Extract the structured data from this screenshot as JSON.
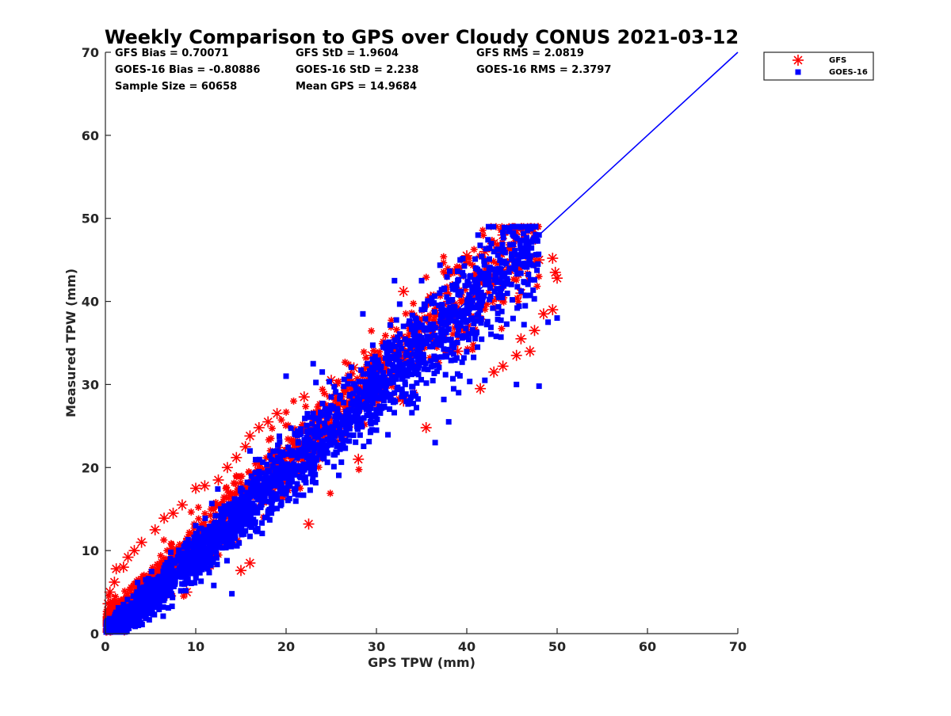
{
  "chart_data": {
    "type": "scatter",
    "title": "Weekly Comparison to GPS over Cloudy CONUS 2021-03-12",
    "xlabel": "GPS TPW (mm)",
    "ylabel": "Measured TPW (mm)",
    "xlim": [
      0,
      70
    ],
    "ylim": [
      0,
      70
    ],
    "xticks": [
      0,
      10,
      20,
      30,
      40,
      50,
      60,
      70
    ],
    "yticks": [
      0,
      10,
      20,
      30,
      40,
      50,
      60,
      70
    ],
    "grid": false,
    "legend_position": "top-right (outside axes)",
    "stats": [
      [
        "GFS Bias = 0.70071",
        "GFS StD = 1.9604",
        "GFS RMS = 2.0819"
      ],
      [
        "GOES-16 Bias = -0.80886",
        "GOES-16 StD = 2.238",
        "GOES-16 RMS = 2.3797"
      ],
      [
        "Sample Size = 60658",
        "Mean GPS = 14.9684",
        ""
      ]
    ],
    "reference_line": {
      "x": [
        0,
        70
      ],
      "y": [
        0,
        70
      ],
      "color": "#0000ff"
    },
    "series": [
      {
        "name": "GFS",
        "marker": "asterisk",
        "color": "#ff0000",
        "points": [
          [
            0.3,
            3.6
          ],
          [
            0.5,
            5.0
          ],
          [
            1.0,
            6.2
          ],
          [
            1.2,
            7.8
          ],
          [
            2.0,
            8.0
          ],
          [
            2.5,
            9.2
          ],
          [
            3.2,
            10.0
          ],
          [
            4.0,
            11.0
          ],
          [
            5.5,
            12.5
          ],
          [
            6.5,
            13.9
          ],
          [
            7.5,
            14.5
          ],
          [
            8.5,
            15.5
          ],
          [
            10.0,
            17.5
          ],
          [
            11.0,
            17.8
          ],
          [
            12.5,
            18.5
          ],
          [
            13.5,
            20.0
          ],
          [
            14.5,
            21.2
          ],
          [
            15.5,
            22.5
          ],
          [
            16.0,
            23.8
          ],
          [
            17.0,
            24.8
          ],
          [
            18.0,
            25.5
          ],
          [
            19.0,
            26.5
          ],
          [
            22.0,
            28.5
          ],
          [
            25.0,
            30.5
          ],
          [
            27.5,
            32.0
          ],
          [
            29.5,
            33.5
          ],
          [
            32.0,
            34.5
          ],
          [
            33.0,
            41.2
          ],
          [
            36.0,
            40.5
          ],
          [
            40.0,
            45.5
          ],
          [
            42.0,
            46.0
          ],
          [
            43.0,
            47.0
          ],
          [
            44.0,
            48.0
          ],
          [
            45.5,
            48.5
          ],
          [
            48.0,
            45.0
          ],
          [
            49.5,
            45.2
          ],
          [
            49.8,
            43.5
          ],
          [
            50.0,
            42.8
          ],
          [
            49.5,
            39.0
          ],
          [
            48.5,
            38.5
          ],
          [
            47.5,
            36.5
          ],
          [
            46.0,
            35.5
          ],
          [
            47.0,
            34.0
          ],
          [
            45.5,
            33.5
          ],
          [
            44.0,
            32.2
          ],
          [
            43.0,
            31.5
          ],
          [
            41.5,
            29.5
          ],
          [
            35.5,
            24.8
          ],
          [
            28.0,
            21.0
          ],
          [
            22.5,
            13.2
          ],
          [
            16.0,
            8.5
          ],
          [
            15.0,
            7.6
          ],
          [
            13.0,
            12.5
          ],
          [
            9.0,
            5.0
          ],
          [
            4.0,
            2.0
          ],
          [
            1.5,
            1.0
          ],
          [
            20.0,
            22.0
          ],
          [
            24.0,
            25.0
          ],
          [
            30.0,
            31.0
          ],
          [
            35.0,
            36.5
          ],
          [
            38.0,
            40.0
          ],
          [
            12.0,
            13.5
          ],
          [
            8.0,
            9.0
          ],
          [
            6.0,
            7.0
          ],
          [
            18.0,
            20.0
          ],
          [
            26.0,
            27.5
          ],
          [
            31.0,
            30.0
          ],
          [
            37.0,
            38.5
          ],
          [
            41.0,
            42.0
          ],
          [
            46.0,
            41.0
          ],
          [
            39.0,
            34.0
          ],
          [
            33.0,
            28.0
          ]
        ]
      },
      {
        "name": "GOES-16",
        "marker": "square",
        "color": "#0000ff",
        "points": [
          [
            1.0,
            2.0
          ],
          [
            2.0,
            3.5
          ],
          [
            3.5,
            5.0
          ],
          [
            5.0,
            6.5
          ],
          [
            7.0,
            8.5
          ],
          [
            9.0,
            10.5
          ],
          [
            11.0,
            12.5
          ],
          [
            13.0,
            15.0
          ],
          [
            15.0,
            17.5
          ],
          [
            17.0,
            19.5
          ],
          [
            19.0,
            22.0
          ],
          [
            21.0,
            24.0
          ],
          [
            23.0,
            26.5
          ],
          [
            25.0,
            28.5
          ],
          [
            27.0,
            31.0
          ],
          [
            29.0,
            32.5
          ],
          [
            31.0,
            35.0
          ],
          [
            33.0,
            37.0
          ],
          [
            35.0,
            39.0
          ],
          [
            37.0,
            41.0
          ],
          [
            39.0,
            42.5
          ],
          [
            41.0,
            44.0
          ],
          [
            43.0,
            46.0
          ],
          [
            44.0,
            48.3
          ],
          [
            48.0,
            48.0
          ],
          [
            50.0,
            38.0
          ],
          [
            49.0,
            37.5
          ],
          [
            48.0,
            29.8
          ],
          [
            45.5,
            30.0
          ],
          [
            42.0,
            30.5
          ],
          [
            38.0,
            25.5
          ],
          [
            36.5,
            23.0
          ],
          [
            24.0,
            31.5
          ],
          [
            20.0,
            31.0
          ],
          [
            23.0,
            32.5
          ],
          [
            16.0,
            22.0
          ],
          [
            10.0,
            13.0
          ],
          [
            6.0,
            4.0
          ],
          [
            12.0,
            5.8
          ],
          [
            14.0,
            4.8
          ],
          [
            3.0,
            1.0
          ],
          [
            32.0,
            42.5
          ],
          [
            35.0,
            42.5
          ],
          [
            28.5,
            38.5
          ],
          [
            34.0,
            29.0
          ],
          [
            30.0,
            24.5
          ],
          [
            22.0,
            18.5
          ],
          [
            18.0,
            14.5
          ]
        ]
      }
    ]
  },
  "legend": {
    "items": [
      {
        "label": "GFS",
        "marker": "asterisk",
        "color": "#ff0000"
      },
      {
        "label": "GOES-16",
        "marker": "square",
        "color": "#0000ff"
      }
    ]
  }
}
